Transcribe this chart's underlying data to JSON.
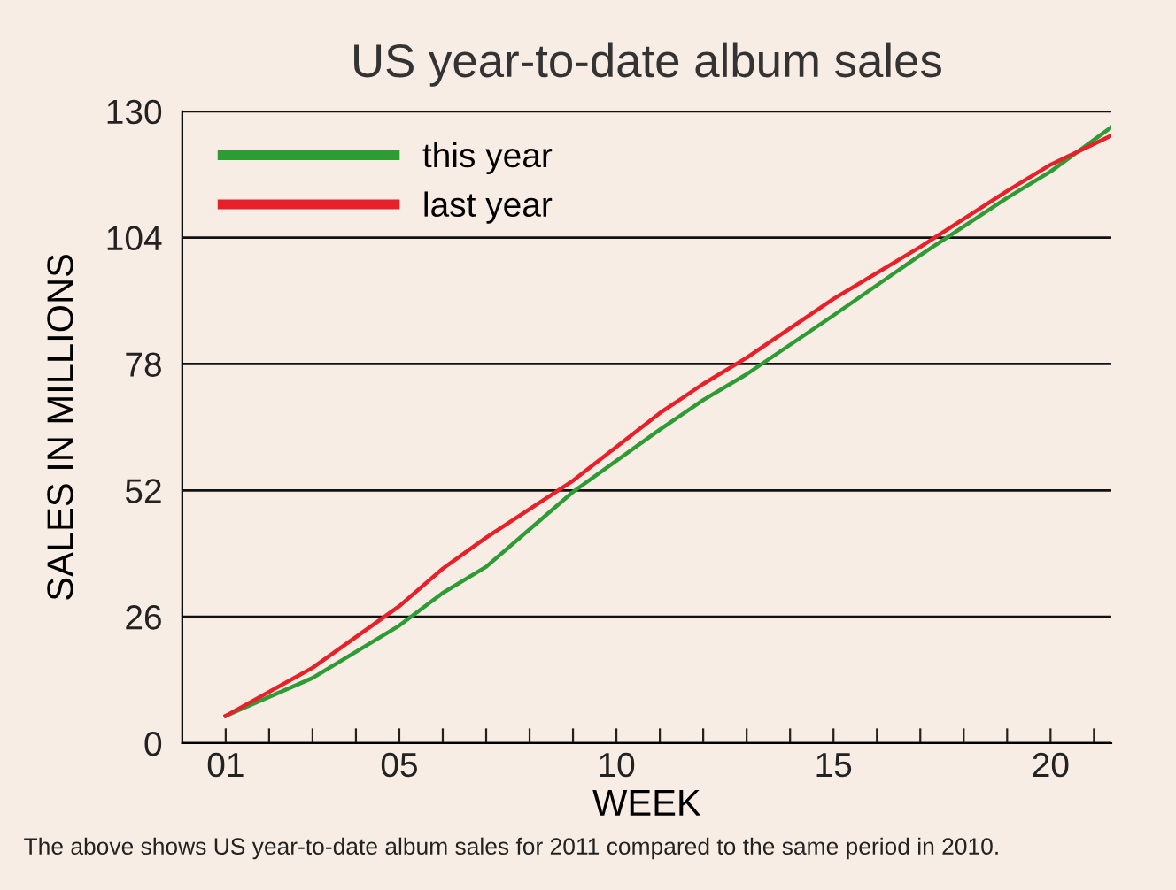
{
  "chart_data": {
    "type": "line",
    "title": "US year-to-date album sales",
    "xlabel": "WEEK",
    "ylabel": "SALES IN MILLIONS",
    "annotations": [
      "The above shows US year-to-date album sales for 2011 compared to the same period in 2010."
    ],
    "x": [
      1,
      3,
      5,
      6,
      7,
      9,
      11,
      12,
      13,
      15,
      17,
      19,
      20,
      21.4
    ],
    "series": [
      {
        "name": "this year",
        "color": "#2e9b35",
        "values": [
          5.6,
          13.4,
          24.2,
          30.9,
          36.3,
          51.7,
          64.5,
          70.6,
          75.9,
          88,
          100.4,
          112.2,
          117.6,
          126.7
        ]
      },
      {
        "name": "last year",
        "color": "#e8202a",
        "values": [
          5.6,
          15.5,
          28.2,
          35.9,
          42.3,
          54,
          67.9,
          73.9,
          79.3,
          91.4,
          102.1,
          113.6,
          119,
          125
        ]
      }
    ],
    "xlim": [
      0,
      21.4
    ],
    "ylim": [
      0,
      130
    ],
    "xticks": [
      {
        "value": 1,
        "label": "01"
      },
      {
        "value": 2,
        "label": null
      },
      {
        "value": 3,
        "label": null
      },
      {
        "value": 4,
        "label": null
      },
      {
        "value": 5,
        "label": "05"
      },
      {
        "value": 6,
        "label": null
      },
      {
        "value": 7,
        "label": null
      },
      {
        "value": 8,
        "label": null
      },
      {
        "value": 9,
        "label": null
      },
      10,
      {
        "value": 11,
        "label": null
      },
      {
        "value": 12,
        "label": null
      },
      {
        "value": 13,
        "label": null
      },
      {
        "value": 14,
        "label": null
      },
      15,
      {
        "value": 16,
        "label": null
      },
      {
        "value": 17,
        "label": null
      },
      {
        "value": 18,
        "label": null
      },
      {
        "value": 19,
        "label": null
      },
      20,
      {
        "value": 21,
        "label": null
      }
    ],
    "yticks": [
      0,
      26,
      52,
      78,
      104,
      130
    ],
    "grid": "y",
    "legend": "top left"
  }
}
